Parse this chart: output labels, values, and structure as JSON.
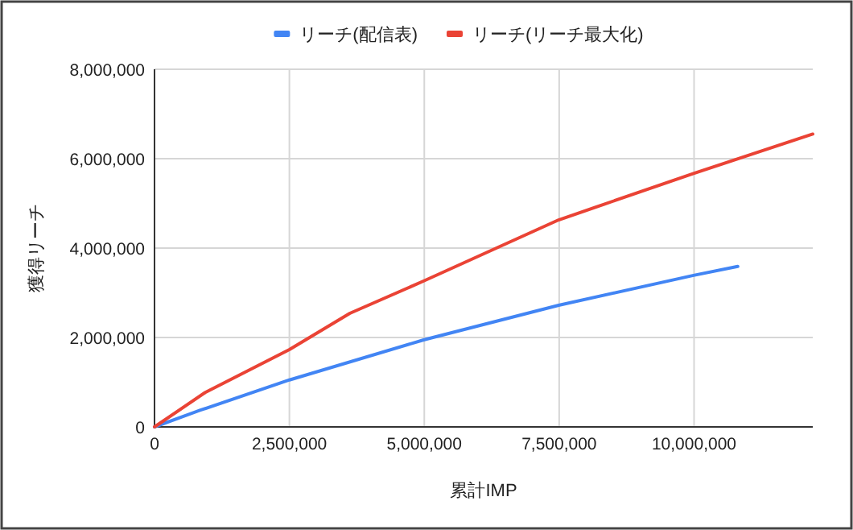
{
  "chart_data": {
    "type": "line",
    "xlabel": "累計IMP",
    "ylabel": "獲得リーチ",
    "xlim": [
      0,
      12200000
    ],
    "ylim": [
      0,
      8000000
    ],
    "xticks": [
      {
        "value": 0,
        "label": "0"
      },
      {
        "value": 2500000,
        "label": "2,500,000"
      },
      {
        "value": 5000000,
        "label": "5,000,000"
      },
      {
        "value": 7500000,
        "label": "7,500,000"
      },
      {
        "value": 10000000,
        "label": "10,000,000"
      }
    ],
    "yticks": [
      {
        "value": 0,
        "label": "0"
      },
      {
        "value": 2000000,
        "label": "2,000,000"
      },
      {
        "value": 4000000,
        "label": "4,000,000"
      },
      {
        "value": 6000000,
        "label": "6,000,000"
      },
      {
        "value": 8000000,
        "label": "8,000,000"
      }
    ],
    "grid": true,
    "legend": "top",
    "marker": "none",
    "line_style": "solid",
    "series": [
      {
        "name": "リーチ(配信表)",
        "color": "#4285f4",
        "x": [
          0,
          840000,
          2500000,
          5000000,
          7490000,
          9990000,
          10810000
        ],
        "values": [
          0,
          370000,
          1050000,
          1950000,
          2720000,
          3390000,
          3590000
        ]
      },
      {
        "name": "リーチ(リーチ最大化)",
        "color": "#ea4335",
        "x": [
          0,
          940000,
          2500000,
          3620000,
          5000000,
          7490000,
          9990000,
          12200000
        ],
        "values": [
          0,
          770000,
          1730000,
          2540000,
          3270000,
          4630000,
          5670000,
          6550000
        ]
      }
    ]
  }
}
